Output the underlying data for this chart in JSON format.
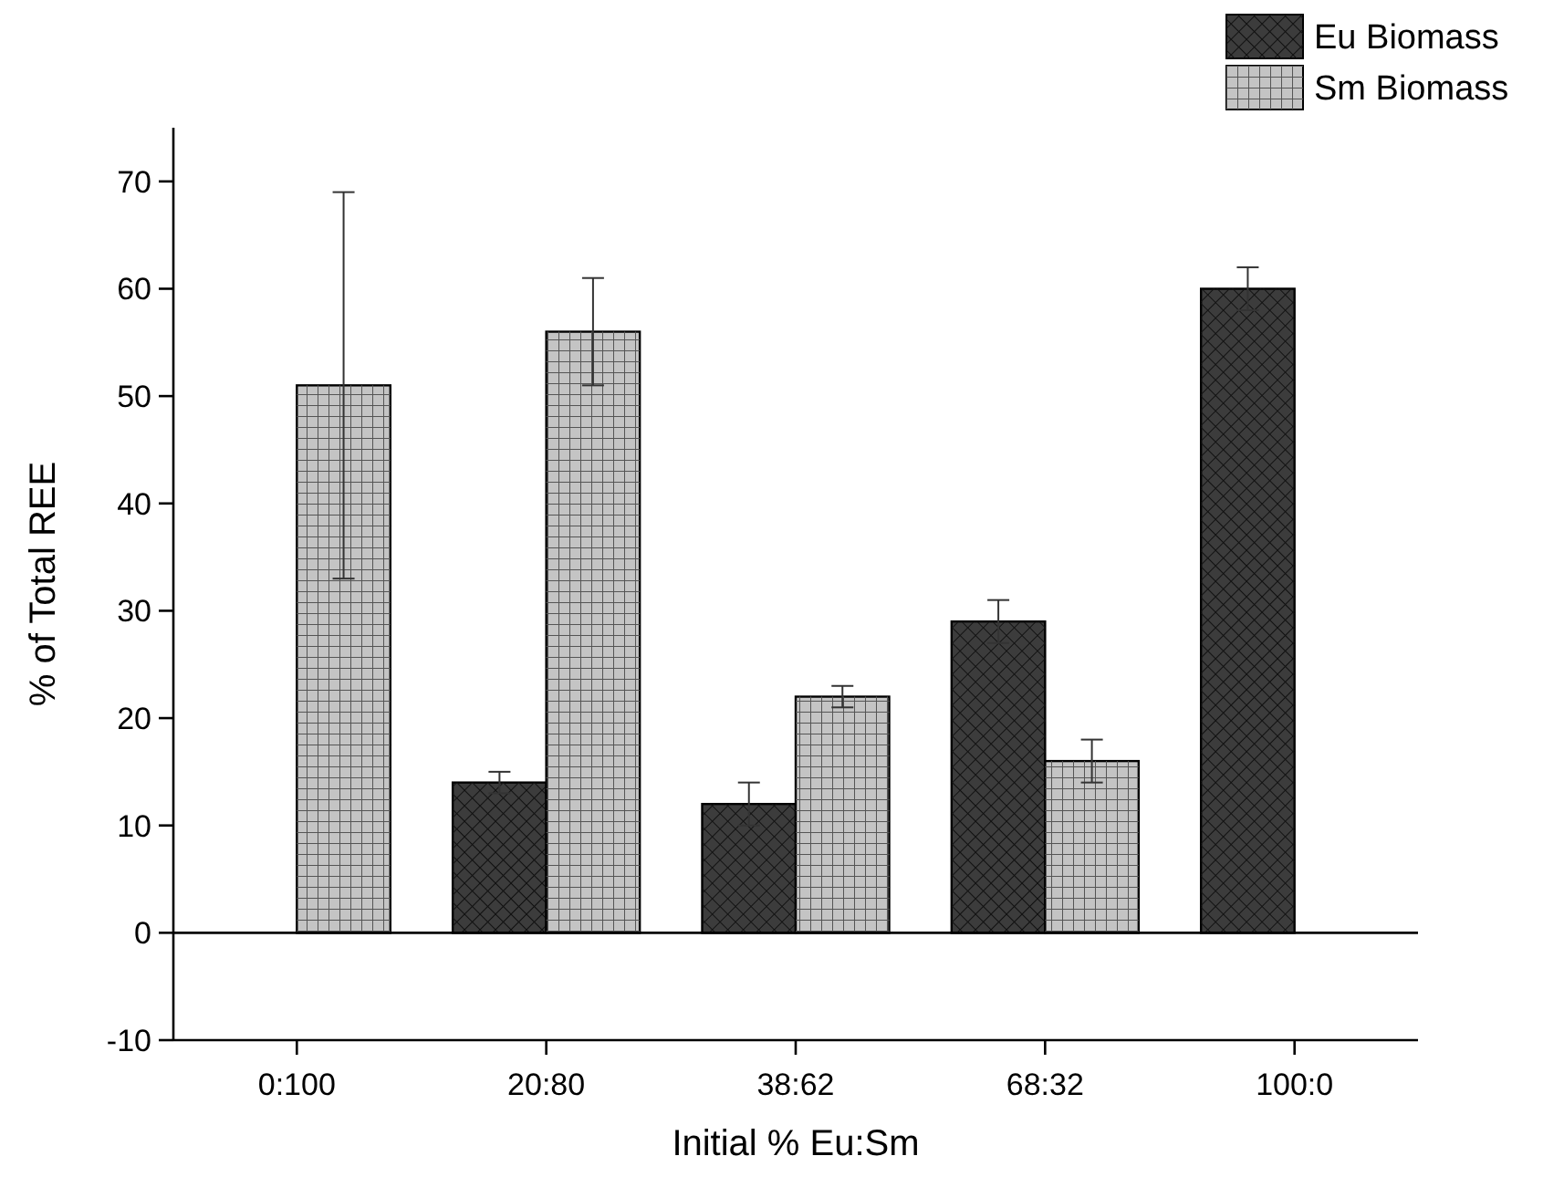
{
  "chart_data": {
    "type": "bar",
    "xlabel": "Initial % Eu:Sm",
    "ylabel": "% of Total REE",
    "categories": [
      "0:100",
      "20:80",
      "38:62",
      "68:32",
      "100:0"
    ],
    "series": [
      {
        "name": "Eu Biomass",
        "color": "#3c3c3c",
        "values": [
          null,
          14,
          12,
          29,
          60
        ],
        "errors": [
          null,
          1,
          2,
          2,
          2
        ]
      },
      {
        "name": "Sm Biomass",
        "color": "#c4c4c4",
        "values": [
          51,
          56,
          22,
          16,
          null
        ],
        "errors": [
          18,
          5,
          1,
          2,
          null
        ]
      }
    ],
    "ylim": [
      -10,
      75
    ],
    "yticks": [
      -10,
      0,
      10,
      20,
      30,
      40,
      50,
      60,
      70
    ],
    "ref_lines": [
      {
        "axis": "y",
        "value": 0
      }
    ],
    "grid": false,
    "legend": "top right"
  }
}
